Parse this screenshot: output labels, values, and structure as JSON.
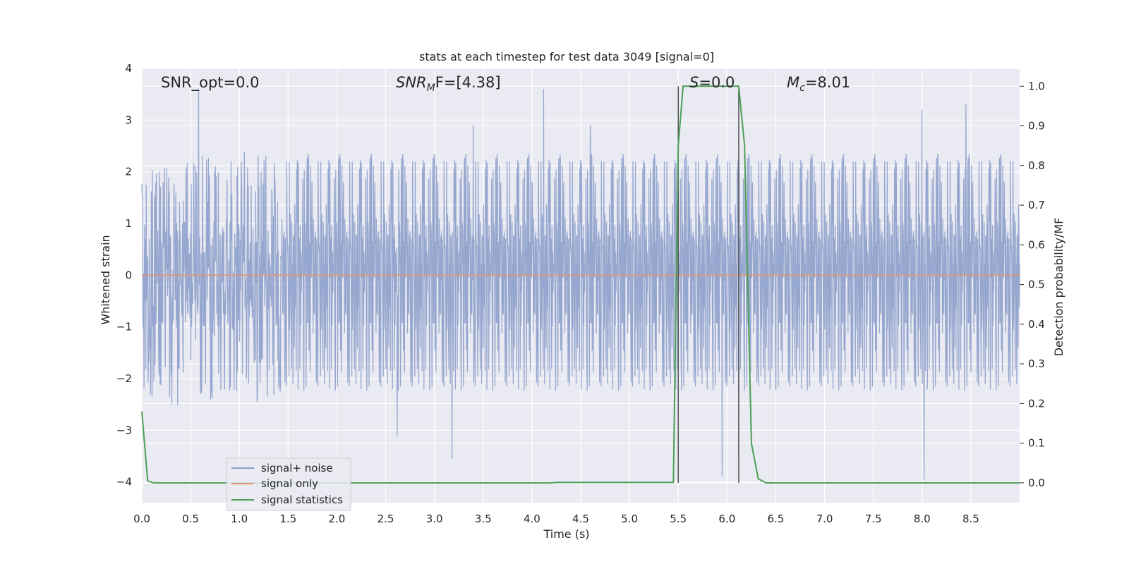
{
  "chart_data": {
    "type": "line",
    "title": "stats at each timestep for test data 3049 [signal=0]",
    "xlabel": "Time (s)",
    "ylabel": "Whitened strain",
    "y2label": "Detection probability/MF",
    "xlim": [
      0,
      9
    ],
    "ylim": [
      -4.4,
      4.0
    ],
    "y2lim": [
      -0.05,
      1.045
    ],
    "xticks": [
      "0.0",
      "0.5",
      "1.0",
      "1.5",
      "2.0",
      "2.5",
      "3.0",
      "3.5",
      "4.0",
      "4.5",
      "5.0",
      "5.5",
      "6.0",
      "6.5",
      "7.0",
      "7.5",
      "8.0",
      "8.5"
    ],
    "yticks": [
      "4",
      "3",
      "2",
      "1",
      "0",
      "−1",
      "−2",
      "−3",
      "−4"
    ],
    "y2ticks": [
      "1.0",
      "0.9",
      "0.8",
      "0.7",
      "0.6",
      "0.5",
      "0.4",
      "0.3",
      "0.2",
      "0.1",
      "0.0"
    ],
    "grid": true,
    "legend_position": "lower-left",
    "annotations": {
      "snr_opt": "SNR_opt=0.0",
      "snr_mf_base": "SNR",
      "snr_mf_sub": "M",
      "snr_mf_rest": "F=[4.38]",
      "s_label": "S",
      "s_value": "=0.0",
      "mc_base": "M",
      "mc_sub": "c",
      "mc_value": "=8.01"
    },
    "vertical_markers": [
      5.5,
      6.12
    ],
    "series": [
      {
        "name": "signal+ noise",
        "color": "#8da0cb",
        "axis": "left",
        "envelope": {
          "sampling_rate_hz": 2048,
          "upper_typical": 2.0,
          "lower_typical": -2.1,
          "peaks": [
            {
              "x": 0.58,
              "y": 3.6
            },
            {
              "x": 4.12,
              "y": 3.6
            },
            {
              "x": 3.4,
              "y": 2.9
            },
            {
              "x": 4.6,
              "y": 2.9
            },
            {
              "x": 8.0,
              "y": 3.2
            },
            {
              "x": 8.45,
              "y": 3.3
            },
            {
              "x": 5.95,
              "y": -3.9
            },
            {
              "x": 8.02,
              "y": -3.95
            },
            {
              "x": 3.18,
              "y": -3.55
            },
            {
              "x": 2.62,
              "y": -3.1
            },
            {
              "x": 6.12,
              "y": -3.4
            }
          ]
        }
      },
      {
        "name": "signal only",
        "color": "#e5946d",
        "axis": "left",
        "x": [
          0,
          9
        ],
        "y": [
          0,
          0
        ]
      },
      {
        "name": "signal statistics",
        "color": "#4c9f56",
        "axis": "right",
        "x": [
          0.0,
          0.06,
          0.12,
          4.2,
          4.25,
          5.45,
          5.5,
          5.55,
          5.6,
          6.12,
          6.18,
          6.25,
          6.32,
          6.4,
          9.0
        ],
        "y": [
          0.18,
          0.005,
          0.0,
          0.0,
          0.001,
          0.001,
          0.85,
          1.0,
          1.0,
          1.0,
          0.85,
          0.1,
          0.01,
          0.0,
          0.0
        ]
      }
    ]
  }
}
